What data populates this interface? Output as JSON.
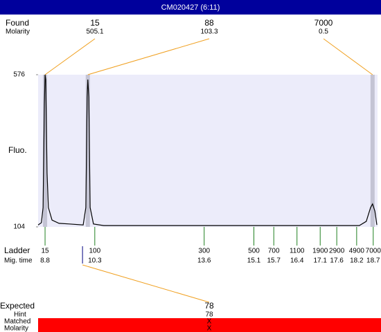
{
  "header": {
    "title": "CM020427 (6:11)"
  },
  "found": {
    "label": "Found",
    "sublabel": "Molarity",
    "peaks": [
      {
        "size": 15,
        "molarity": 505.1,
        "time": 8.8
      },
      {
        "size": 88,
        "molarity": 103.3,
        "time": 10.09
      },
      {
        "size": 7000,
        "molarity": 0.5,
        "time": 18.68
      }
    ]
  },
  "ladder": {
    "label": "Ladder",
    "sublabel": "Mig. time",
    "sizes": [
      15,
      100,
      300,
      500,
      700,
      1100,
      1900,
      2900,
      4900,
      7000
    ],
    "times": [
      8.8,
      10.3,
      13.6,
      15.1,
      15.7,
      16.4,
      17.1,
      17.6,
      18.2,
      18.7
    ]
  },
  "expected": {
    "label": "Expected",
    "value": 78,
    "time": 9.93,
    "hint_label": "Hint",
    "hint": 78,
    "matched_label": "Matched",
    "matched": "X",
    "molarity_label": "Molarity",
    "molarity": "X"
  },
  "chart_data": {
    "type": "line",
    "y_label": "Fluo.",
    "color": "#000000",
    "xlim": [
      8.59,
      18.83
    ],
    "ylim": [
      104,
      576
    ],
    "yticks": [
      104,
      576
    ],
    "x": [
      8.59,
      8.69,
      8.74,
      8.78,
      8.8,
      8.82,
      8.86,
      8.9,
      9.01,
      9.22,
      9.53,
      9.95,
      10.03,
      10.07,
      10.09,
      10.12,
      10.16,
      10.26,
      10.57,
      13.7,
      15.18,
      18.28,
      18.49,
      18.62,
      18.68,
      18.75,
      18.81
    ],
    "values": [
      110,
      117,
      164,
      486,
      576,
      561,
      271,
      164,
      125,
      115,
      113,
      110,
      164,
      507,
      561,
      507,
      164,
      113,
      108,
      108,
      108,
      108,
      121,
      164,
      175,
      153,
      110
    ]
  }
}
